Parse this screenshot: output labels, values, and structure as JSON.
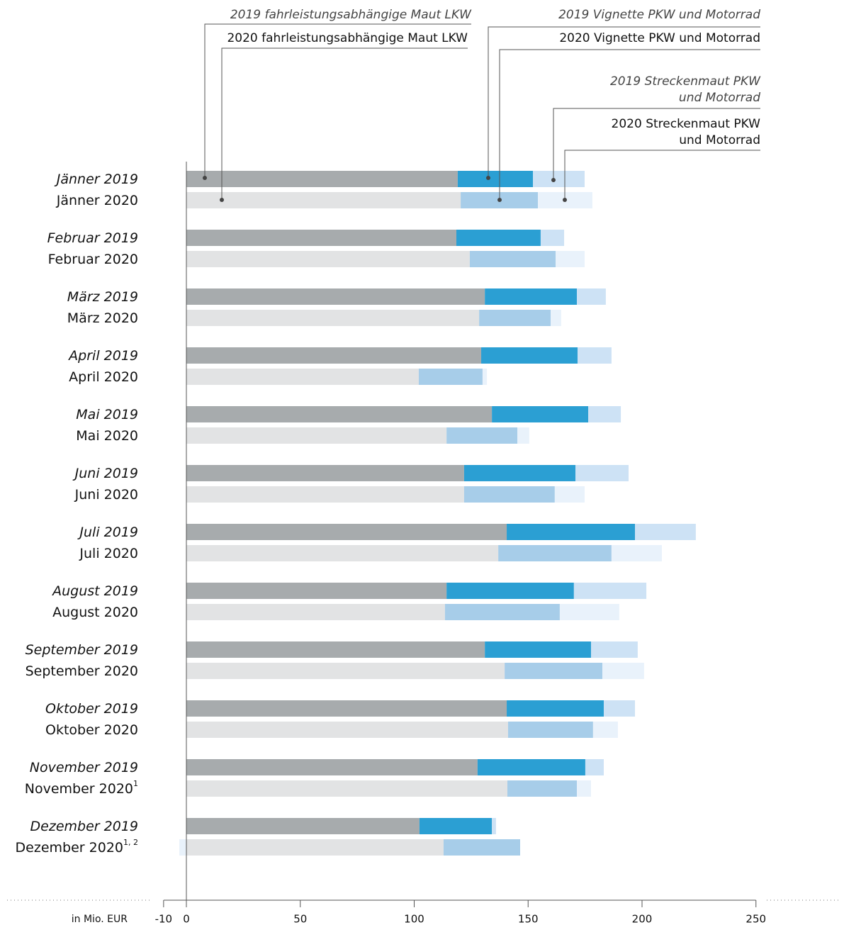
{
  "chart_data": {
    "type": "stacked-barh",
    "categories": [
      "Jänner 2019",
      "Jänner 2020",
      "Februar 2019",
      "Februar 2020",
      "März 2019",
      "März 2020",
      "April 2019",
      "April 2020",
      "Mai 2019",
      "Mai 2020",
      "Juni 2019",
      "Juni 2020",
      "Juli 2019",
      "Juli 2020",
      "August 2019",
      "August 2020",
      "September 2019",
      "September 2020",
      "Oktober 2019",
      "Oktober 2020",
      "November 2019",
      "November 2020",
      "Dezember 2019",
      "Dezember 2020"
    ],
    "category_footnotes": [
      null,
      null,
      null,
      null,
      null,
      null,
      null,
      null,
      null,
      null,
      null,
      null,
      null,
      null,
      null,
      null,
      null,
      null,
      null,
      null,
      null,
      "1",
      null,
      "1, 2"
    ],
    "series": [
      {
        "name": "2019 fahrleistungsabhängige Maut LKW",
        "color": "#a7abad",
        "values": [
          119.1,
          null,
          118.5,
          null,
          131,
          null,
          129.4,
          null,
          134.1,
          null,
          121.9,
          null,
          140.6,
          null,
          114.2,
          null,
          131,
          null,
          140.6,
          null,
          127.8,
          null,
          102.3,
          null
        ]
      },
      {
        "name": "2019 Vignette PKW und Motorrad",
        "color": "#2b9fd3",
        "values": [
          33,
          null,
          37,
          null,
          40.4,
          null,
          42.3,
          null,
          42.3,
          null,
          48.9,
          null,
          56.3,
          null,
          55.9,
          null,
          46.6,
          null,
          42.6,
          null,
          47.3,
          null,
          31.8,
          null
        ]
      },
      {
        "name": "2019 Streckenmaut PKW und Motorrad",
        "color": "#cde2f5",
        "values": [
          22.7,
          null,
          10.3,
          null,
          12.7,
          null,
          14.9,
          null,
          14.3,
          null,
          23.3,
          null,
          26.7,
          null,
          31.8,
          null,
          20.5,
          null,
          13.7,
          null,
          8.1,
          null,
          1.8,
          null
        ]
      },
      {
        "name": "2020 fahrleistungsabhängige Maut LKW",
        "color": "#e2e3e4",
        "values": [
          null,
          120.4,
          null,
          124.4,
          null,
          128.5,
          null,
          102,
          null,
          114.2,
          null,
          121.9,
          null,
          136.9,
          null,
          113.5,
          null,
          139.7,
          null,
          141.2,
          null,
          140.9,
          null,
          112.9
        ]
      },
      {
        "name": "2020 Vignette PKW und Motorrad",
        "color": "#a7cde9",
        "values": [
          null,
          33.9,
          null,
          37.7,
          null,
          31.4,
          null,
          28,
          null,
          31.1,
          null,
          39.8,
          null,
          49.7,
          null,
          50.4,
          null,
          42.9,
          null,
          37.3,
          null,
          30.5,
          null,
          33.6
        ]
      },
      {
        "name": "2020 Streckenmaut PKW und Motorrad",
        "color": "#e9f2fb",
        "values": [
          null,
          23.9,
          null,
          12.7,
          null,
          4.6,
          null,
          1.9,
          null,
          5.2,
          null,
          13.1,
          null,
          22.1,
          null,
          26.1,
          null,
          18.3,
          null,
          10.9,
          null,
          6.2,
          null,
          -3.1
        ]
      }
    ],
    "xlabel": "in Mio. EUR",
    "xlim": [
      -10,
      250
    ],
    "xticks": [
      -10,
      0,
      50,
      100,
      150,
      200,
      250
    ]
  }
}
